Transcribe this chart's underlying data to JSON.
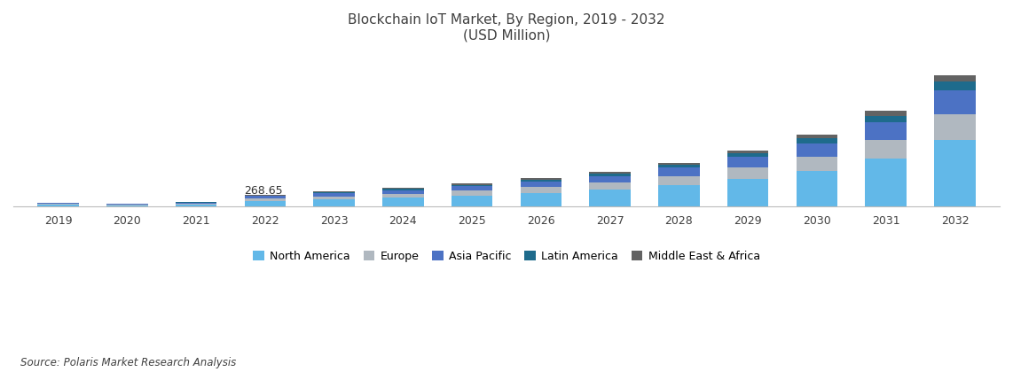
{
  "years": [
    2019,
    2020,
    2021,
    2022,
    2023,
    2024,
    2025,
    2026,
    2027,
    2028,
    2029,
    2030,
    2031,
    2032
  ],
  "regions": [
    "North America",
    "Europe",
    "Asia Pacific",
    "Latin America",
    "Middle East & Africa"
  ],
  "colors": [
    "#62B8E8",
    "#B0B8C0",
    "#4C72C4",
    "#1E6B8C",
    "#636363"
  ],
  "data": {
    "North America": [
      40,
      35,
      48,
      130,
      165,
      200,
      250,
      305,
      375,
      480,
      620,
      800,
      1080,
      1500
    ],
    "Europe": [
      20,
      17,
      22,
      55,
      68,
      85,
      105,
      130,
      158,
      200,
      255,
      320,
      420,
      570
    ],
    "Asia Pacific": [
      18,
      15,
      20,
      52,
      65,
      82,
      100,
      122,
      150,
      190,
      240,
      300,
      395,
      535
    ],
    "Latin America": [
      7,
      6,
      8,
      18,
      23,
      28,
      35,
      43,
      52,
      66,
      84,
      105,
      138,
      188
    ],
    "Middle East & Africa": [
      5,
      4,
      6,
      14,
      17,
      21,
      26,
      32,
      40,
      50,
      63,
      80,
      105,
      142
    ]
  },
  "annotation_year": 2022,
  "annotation_text": "268.65",
  "title_line1": "Blockchain IoT Market, By Region, 2019 - 2032",
  "title_line2": "(USD Million)",
  "source_text": "Source: Polaris Market Research Analysis",
  "background_color": "#FFFFFF",
  "title_color": "#404040",
  "bar_width": 0.6,
  "figsize": [
    11.42,
    4.2
  ],
  "dpi": 100
}
